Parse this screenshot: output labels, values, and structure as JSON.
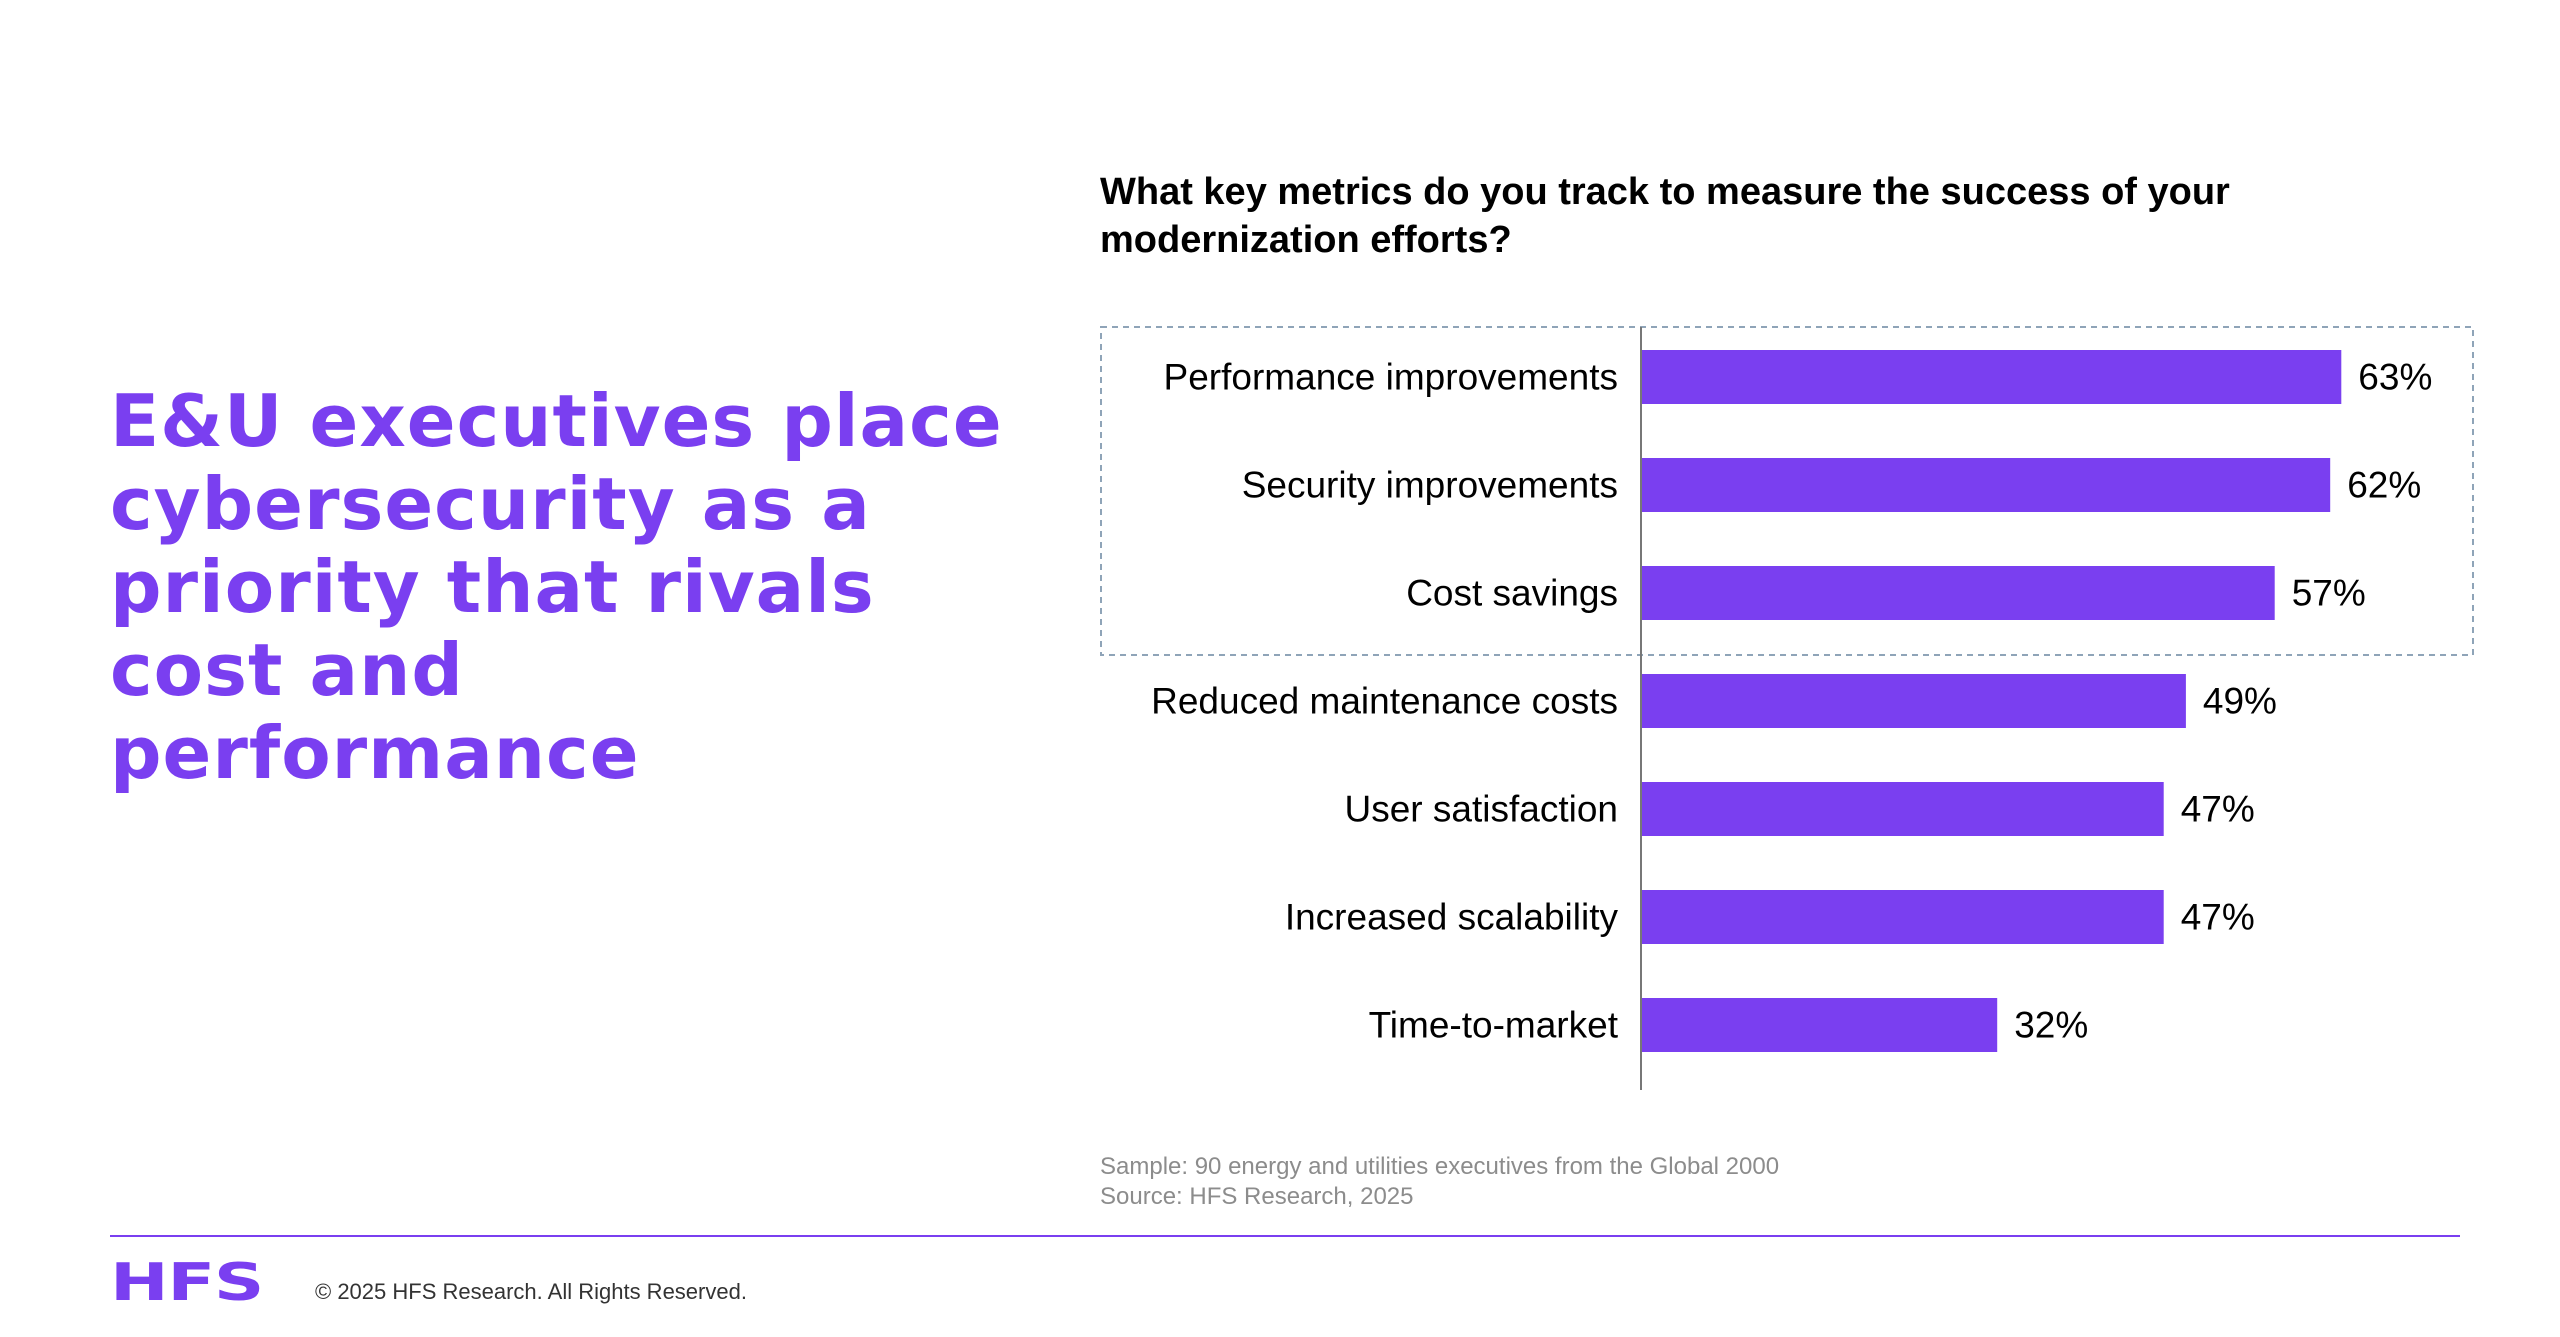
{
  "headline": "E&U executives place cybersecurity as a priority that rivals cost and performance",
  "chart_data": {
    "type": "bar",
    "orientation": "horizontal",
    "title": "What key metrics do you track to measure the success of your modernization efforts?",
    "categories": [
      "Performance improvements",
      "Security improvements",
      "Cost savings",
      "Reduced maintenance costs",
      "User satisfaction",
      "Increased scalability",
      "Time-to-market"
    ],
    "values": [
      63,
      62,
      57,
      49,
      47,
      47,
      32
    ],
    "value_labels": [
      "63%",
      "62%",
      "57%",
      "49%",
      "47%",
      "47%",
      "32%"
    ],
    "unit": "%",
    "xlim": [
      0,
      100
    ],
    "highlighted_categories": [
      "Performance improvements",
      "Security improvements",
      "Cost savings"
    ],
    "grid": false,
    "legend": "none"
  },
  "notes": {
    "sample": "Sample: 90 energy and utilities executives from the Global 2000",
    "source": "Source: HFS Research, 2025"
  },
  "footer": {
    "logo_text": "HFS",
    "copyright": "© 2025 HFS Research. All Rights Reserved."
  },
  "colors": {
    "accent": "#7a3ff0",
    "bar": "#7a3ff0",
    "highlight_border": "#8fa4b8",
    "axis": "#777777",
    "text": "#000000",
    "note_text": "#8c8c8c"
  }
}
